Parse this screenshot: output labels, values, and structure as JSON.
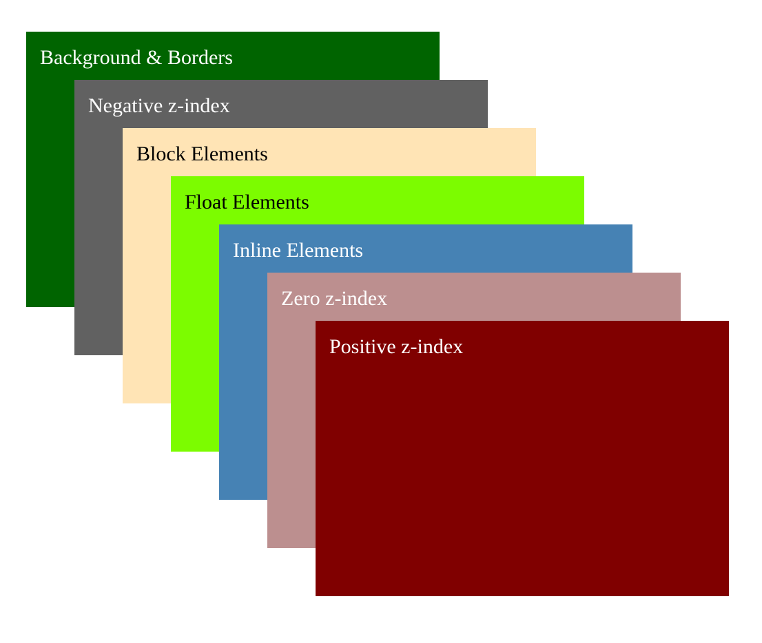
{
  "layers": [
    {
      "label": "Background & Borders",
      "background": "#006400",
      "text_color": "#ffffff"
    },
    {
      "label": "Negative z-index",
      "background": "#616161",
      "text_color": "#ffffff"
    },
    {
      "label": "Block Elements",
      "background": "#ffe4b5",
      "text_color": "#000000"
    },
    {
      "label": "Float Elements",
      "background": "#7cfc00",
      "text_color": "#000000"
    },
    {
      "label": "Inline Elements",
      "background": "#4682b4",
      "text_color": "#ffffff"
    },
    {
      "label": "Zero z-index",
      "background": "#bc8f8f",
      "text_color": "#ffffff"
    },
    {
      "label": "Positive z-index",
      "background": "#800000",
      "text_color": "#ffffff"
    }
  ]
}
